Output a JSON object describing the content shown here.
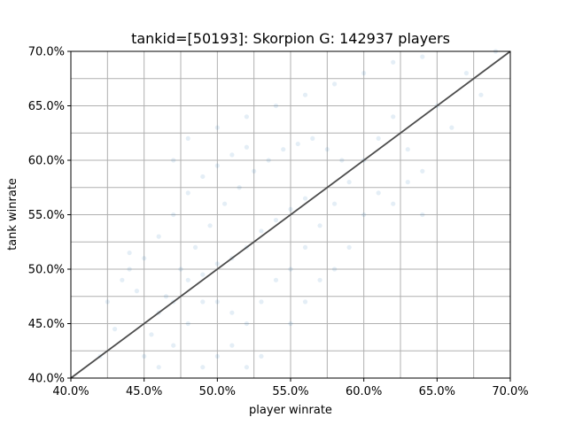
{
  "chart_data": {
    "type": "scatter",
    "title": "tankid=[50193]: Skorpion G: 142937 players",
    "xlabel": "player winrate",
    "ylabel": "tank winrate",
    "xlim": [
      0.4,
      0.7
    ],
    "ylim": [
      0.4,
      0.7
    ],
    "x_ticks": [
      0.4,
      0.45,
      0.5,
      0.55,
      0.6,
      0.65,
      0.7
    ],
    "x_tick_labels": [
      "40.0%",
      "45.0%",
      "50.0%",
      "55.0%",
      "60.0%",
      "65.0%",
      "70.0%"
    ],
    "y_ticks": [
      0.4,
      0.45,
      0.5,
      0.55,
      0.6,
      0.65,
      0.7
    ],
    "y_tick_labels": [
      "40.0%",
      "45.0%",
      "50.0%",
      "55.0%",
      "60.0%",
      "65.0%",
      "70.0%"
    ],
    "grid": true,
    "grid_minor_step": 0.025,
    "reference_line": {
      "from": [
        0.4,
        0.4
      ],
      "to": [
        0.7,
        0.7
      ],
      "color": "#4d4d4d"
    },
    "series": [
      {
        "color": "#1f77b4",
        "alpha": 0.12,
        "points": [
          [
            0.47,
            0.47
          ],
          [
            0.48,
            0.49
          ],
          [
            0.49,
            0.495
          ],
          [
            0.5,
            0.505
          ],
          [
            0.51,
            0.51
          ],
          [
            0.52,
            0.52
          ],
          [
            0.53,
            0.535
          ],
          [
            0.54,
            0.545
          ],
          [
            0.55,
            0.555
          ],
          [
            0.56,
            0.565
          ],
          [
            0.46,
            0.46
          ],
          [
            0.455,
            0.44
          ],
          [
            0.465,
            0.475
          ],
          [
            0.475,
            0.5
          ],
          [
            0.485,
            0.52
          ],
          [
            0.495,
            0.54
          ],
          [
            0.505,
            0.56
          ],
          [
            0.515,
            0.575
          ],
          [
            0.525,
            0.59
          ],
          [
            0.535,
            0.6
          ],
          [
            0.545,
            0.61
          ],
          [
            0.555,
            0.615
          ],
          [
            0.565,
            0.62
          ],
          [
            0.575,
            0.61
          ],
          [
            0.585,
            0.6
          ],
          [
            0.5,
            0.47
          ],
          [
            0.51,
            0.46
          ],
          [
            0.52,
            0.45
          ],
          [
            0.53,
            0.47
          ],
          [
            0.54,
            0.49
          ],
          [
            0.55,
            0.5
          ],
          [
            0.56,
            0.52
          ],
          [
            0.57,
            0.54
          ],
          [
            0.58,
            0.56
          ],
          [
            0.59,
            0.58
          ],
          [
            0.45,
            0.42
          ],
          [
            0.46,
            0.41
          ],
          [
            0.47,
            0.43
          ],
          [
            0.48,
            0.45
          ],
          [
            0.49,
            0.47
          ],
          [
            0.445,
            0.48
          ],
          [
            0.44,
            0.5
          ],
          [
            0.45,
            0.51
          ],
          [
            0.46,
            0.53
          ],
          [
            0.47,
            0.55
          ],
          [
            0.48,
            0.57
          ],
          [
            0.49,
            0.585
          ],
          [
            0.5,
            0.595
          ],
          [
            0.51,
            0.605
          ],
          [
            0.52,
            0.612
          ],
          [
            0.6,
            0.6
          ],
          [
            0.61,
            0.62
          ],
          [
            0.62,
            0.64
          ],
          [
            0.63,
            0.61
          ],
          [
            0.64,
            0.59
          ],
          [
            0.65,
            0.65
          ],
          [
            0.66,
            0.63
          ],
          [
            0.67,
            0.68
          ],
          [
            0.68,
            0.66
          ],
          [
            0.69,
            0.7
          ],
          [
            0.42,
            0.42
          ],
          [
            0.43,
            0.445
          ],
          [
            0.425,
            0.47
          ],
          [
            0.435,
            0.49
          ],
          [
            0.44,
            0.515
          ],
          [
            0.6,
            0.55
          ],
          [
            0.61,
            0.57
          ],
          [
            0.62,
            0.56
          ],
          [
            0.63,
            0.58
          ],
          [
            0.64,
            0.55
          ],
          [
            0.57,
            0.49
          ],
          [
            0.58,
            0.5
          ],
          [
            0.59,
            0.52
          ],
          [
            0.56,
            0.47
          ],
          [
            0.55,
            0.45
          ],
          [
            0.53,
            0.42
          ],
          [
            0.52,
            0.41
          ],
          [
            0.51,
            0.43
          ],
          [
            0.5,
            0.42
          ],
          [
            0.49,
            0.41
          ],
          [
            0.47,
            0.6
          ],
          [
            0.48,
            0.62
          ],
          [
            0.5,
            0.63
          ],
          [
            0.52,
            0.64
          ],
          [
            0.54,
            0.65
          ],
          [
            0.56,
            0.66
          ],
          [
            0.58,
            0.67
          ],
          [
            0.6,
            0.68
          ],
          [
            0.62,
            0.69
          ],
          [
            0.64,
            0.695
          ]
        ]
      }
    ]
  }
}
